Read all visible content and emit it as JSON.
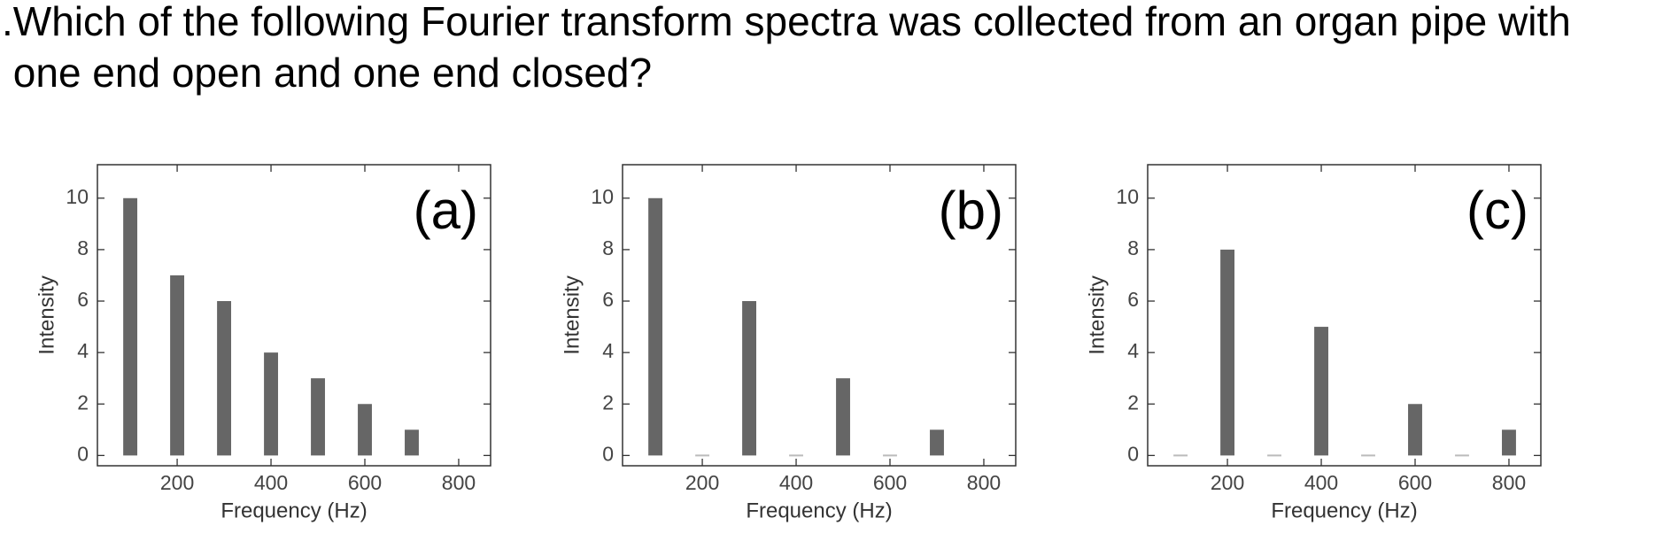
{
  "question": {
    "lines": [
      ".Which of the following Fourier transform spectra was collected from an organ pipe with",
      " one end open and one end closed?"
    ]
  },
  "chart_data": [
    {
      "type": "bar",
      "label": "(a)",
      "xlabel": "Frequency (Hz)",
      "ylabel": "Intensity",
      "color": "#666666",
      "x": [
        100,
        200,
        300,
        400,
        500,
        600,
        700
      ],
      "values": [
        10,
        7,
        6,
        4,
        3,
        2,
        1
      ],
      "xlim": [
        30,
        868
      ],
      "ylim": [
        -0.4,
        11.3
      ],
      "xticks": [
        200,
        400,
        600,
        800
      ],
      "yticks": [
        0,
        2,
        4,
        6,
        8,
        10
      ]
    },
    {
      "type": "bar",
      "label": "(b)",
      "xlabel": "Frequency (Hz)",
      "ylabel": "Intensity",
      "color": "#666666",
      "x": [
        100,
        200,
        300,
        400,
        500,
        600,
        700
      ],
      "values": [
        10,
        0,
        6,
        0,
        3,
        0,
        1
      ],
      "xlim": [
        30,
        868
      ],
      "ylim": [
        -0.4,
        11.3
      ],
      "xticks": [
        200,
        400,
        600,
        800
      ],
      "yticks": [
        0,
        2,
        4,
        6,
        8,
        10
      ]
    },
    {
      "type": "bar",
      "label": "(c)",
      "xlabel": "Frequency (Hz)",
      "ylabel": "Intensity",
      "color": "#666666",
      "x": [
        100,
        200,
        300,
        400,
        500,
        600,
        700,
        800
      ],
      "values": [
        0,
        8,
        0,
        5,
        0,
        2,
        0,
        1
      ],
      "xlim": [
        30,
        868
      ],
      "ylim": [
        -0.4,
        11.3
      ],
      "xticks": [
        200,
        400,
        600,
        800
      ],
      "yticks": [
        0,
        2,
        4,
        6,
        8,
        10
      ]
    }
  ]
}
